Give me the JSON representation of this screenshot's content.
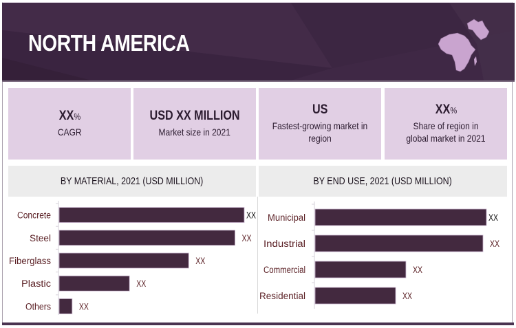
{
  "header": {
    "title": "NORTH AMERICA",
    "map_icon": "africa-middle-east-map-icon",
    "colors": {
      "background": "#3e2844",
      "map_fill": "#c9a4cf",
      "title": "#ffffff"
    }
  },
  "stats": [
    {
      "value": "XX",
      "unit": "%",
      "label": "CAGR"
    },
    {
      "value": "USD XX MILLION",
      "unit": "",
      "label": "Market size in 2021"
    },
    {
      "value": "US",
      "unit": "",
      "label": "Fastest-growing market in region"
    },
    {
      "value": "XX",
      "unit": "%",
      "label": "Share of region in global market in 2021"
    }
  ],
  "colors": {
    "card_bg": "#e1cfe4",
    "section_bg": "#ececec",
    "bar": "#43293f",
    "label": "#5a1f24"
  },
  "chart_data": [
    {
      "type": "bar",
      "orientation": "horizontal",
      "title": "BY MATERIAL, 2021 (USD MILLION)",
      "categories": [
        "Concrete",
        "Steel",
        "Fiberglass",
        "Plastic",
        "Others"
      ],
      "values": [
        1.0,
        0.95,
        0.7,
        0.38,
        0.07
      ],
      "value_units": "relative to largest bar (actual values masked)",
      "data_labels": [
        "XX",
        "XX",
        "XX",
        "XX",
        "XX"
      ],
      "xlabel": "",
      "ylabel": "",
      "grid": false,
      "legend": "none"
    },
    {
      "type": "bar",
      "orientation": "horizontal",
      "title": "BY END USE, 2021 (USD MILLION)",
      "categories": [
        "Municipal",
        "Industrial",
        "Commercial",
        "Residential"
      ],
      "values": [
        1.0,
        0.98,
        0.53,
        0.47
      ],
      "value_units": "relative to largest bar (actual values masked)",
      "data_labels": [
        "XX",
        "XX",
        "XX",
        "XX"
      ],
      "xlabel": "",
      "ylabel": "",
      "grid": false,
      "legend": "none"
    }
  ]
}
